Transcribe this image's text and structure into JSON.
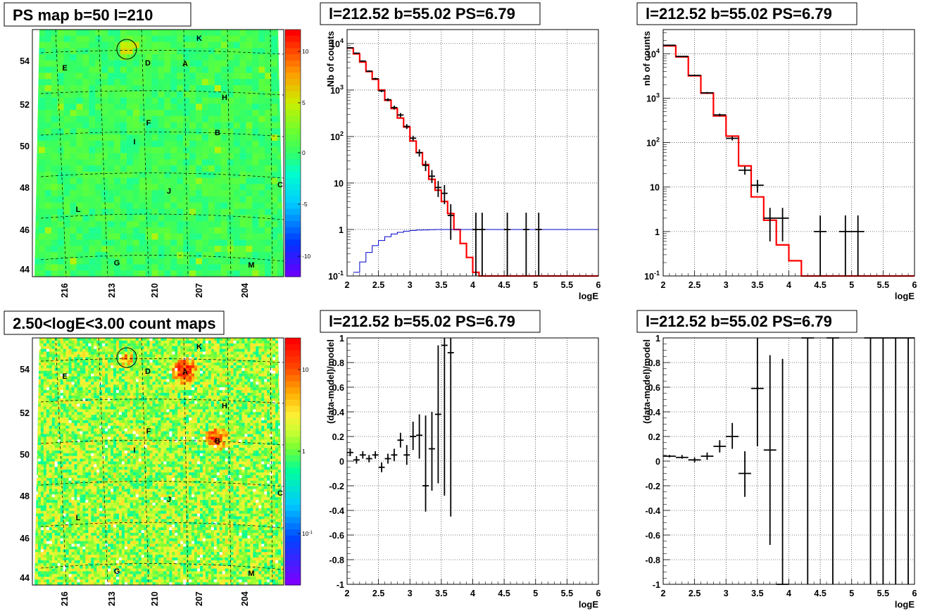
{
  "colors": {
    "model": "#ff0000",
    "exposure": "#0000cc",
    "data": "#000000"
  },
  "sky_maps": {
    "lat_ticks": [
      "54",
      "52",
      "50",
      "48",
      "46",
      "44"
    ],
    "lon_ticks": [
      "216",
      "213",
      "210",
      "207",
      "204"
    ],
    "source_markers": [
      "K",
      "D",
      "A",
      "E",
      "H",
      "F",
      "B",
      "I",
      "C",
      "J",
      "L",
      "G",
      "M"
    ],
    "top": {
      "title": "PS map b=50 l=210",
      "colorbar_ticks": [
        "10",
        "5",
        "0",
        "-5",
        "-10"
      ]
    },
    "bottom": {
      "title": "2.50<logE<3.00 count maps",
      "colorbar_ticks": [
        "10",
        "1",
        "10-1"
      ]
    }
  },
  "chart_data": [
    {
      "type": "line",
      "title": "l=212.52 b=55.02 PS=6.79",
      "xlabel": "logE",
      "ylabel": "Nb of counts",
      "x_ticks": [
        "2",
        "2.5",
        "3",
        "3.5",
        "4",
        "4.5",
        "5",
        "5.5",
        "6"
      ],
      "y_ticks": [
        "10-1",
        "1",
        "10",
        "102",
        "103",
        "104"
      ],
      "xlim": [
        2,
        6
      ],
      "ylim": [
        0.1,
        20000
      ],
      "log_y": true,
      "grid": true,
      "series": [
        {
          "style": "step-model",
          "bin_width": 0.1,
          "x": [
            2.0,
            2.1,
            2.2,
            2.3,
            2.4,
            2.5,
            2.6,
            2.7,
            2.8,
            2.9,
            3.0,
            3.1,
            3.2,
            3.3,
            3.4,
            3.5,
            3.6,
            3.7,
            3.8,
            3.9,
            4.0,
            4.1,
            4.2,
            4.3,
            4.4,
            4.5,
            4.6,
            4.7,
            4.8,
            4.9,
            5.0,
            5.1,
            5.2,
            5.3,
            5.4,
            5.5,
            5.6,
            5.7,
            5.8,
            5.9
          ],
          "y": [
            8000,
            6000,
            4000,
            2500,
            1700,
            1000,
            600,
            400,
            250,
            160,
            80,
            45,
            25,
            12,
            7,
            4,
            2.2,
            1.0,
            0.5,
            0.25,
            0.12,
            0.1,
            0.1,
            0.1,
            0.1,
            0.1,
            0.1,
            0.1,
            0.1,
            0.1,
            0.1,
            0.1,
            0.1,
            0.1,
            0.1,
            0.1,
            0.1,
            0.1,
            0.1,
            0.1
          ]
        },
        {
          "style": "step-exposure",
          "bin_width": 0.1,
          "x": [
            2.1,
            2.2,
            2.3,
            2.4,
            2.5,
            2.6,
            2.7,
            2.8,
            2.9,
            3.0,
            3.1,
            3.2,
            3.3,
            3.4,
            3.5,
            3.6,
            3.7,
            3.8,
            3.9,
            4.0,
            4.1,
            4.2,
            4.3,
            4.4,
            4.5,
            4.6,
            4.7,
            4.8,
            4.9,
            5.0,
            5.1,
            5.2,
            5.3,
            5.4,
            5.5,
            5.6,
            5.7,
            5.8,
            5.9
          ],
          "y": [
            0.12,
            0.2,
            0.32,
            0.45,
            0.58,
            0.7,
            0.8,
            0.87,
            0.92,
            0.95,
            0.97,
            0.98,
            0.99,
            1,
            1,
            1,
            1,
            1,
            1,
            1,
            1,
            1,
            1,
            1,
            1,
            1,
            1,
            1,
            1,
            1,
            1,
            1,
            1,
            1,
            1,
            1,
            1,
            1,
            1
          ]
        },
        {
          "style": "errors-log",
          "dx": 0.05,
          "points": [
            {
              "x": 2.05,
              "y": 8100,
              "lo": 7900,
              "hi": 8300
            },
            {
              "x": 2.15,
              "y": 6200,
              "lo": 6000,
              "hi": 6400
            },
            {
              "x": 2.25,
              "y": 4200,
              "lo": 4050,
              "hi": 4350
            },
            {
              "x": 2.35,
              "y": 2550,
              "lo": 2450,
              "hi": 2650
            },
            {
              "x": 2.45,
              "y": 1750,
              "lo": 1670,
              "hi": 1830
            },
            {
              "x": 2.55,
              "y": 960,
              "lo": 900,
              "hi": 1020
            },
            {
              "x": 2.65,
              "y": 620,
              "lo": 575,
              "hi": 665
            },
            {
              "x": 2.75,
              "y": 420,
              "lo": 380,
              "hi": 460
            },
            {
              "x": 2.85,
              "y": 290,
              "lo": 260,
              "hi": 320
            },
            {
              "x": 2.95,
              "y": 165,
              "lo": 145,
              "hi": 185
            },
            {
              "x": 3.05,
              "y": 92,
              "lo": 80,
              "hi": 104
            },
            {
              "x": 3.15,
              "y": 45,
              "lo": 37,
              "hi": 53
            },
            {
              "x": 3.25,
              "y": 24,
              "lo": 18,
              "hi": 30
            },
            {
              "x": 3.35,
              "y": 14,
              "lo": 10,
              "hi": 19
            },
            {
              "x": 3.45,
              "y": 8,
              "lo": 5,
              "hi": 11
            },
            {
              "x": 3.55,
              "y": 6,
              "lo": 3.5,
              "hi": 9
            },
            {
              "x": 3.65,
              "y": 2,
              "lo": 0.6,
              "hi": 3.5
            },
            {
              "x": 4.05,
              "y": 1,
              "lo": 0.1,
              "hi": 2.3
            },
            {
              "x": 4.15,
              "y": 1,
              "lo": 0.1,
              "hi": 2.3
            },
            {
              "x": 4.55,
              "y": 1,
              "lo": 0.1,
              "hi": 2.3
            },
            {
              "x": 4.85,
              "y": 1,
              "lo": 0.1,
              "hi": 2.3
            },
            {
              "x": 5.05,
              "y": 1,
              "lo": 0.1,
              "hi": 2.3
            }
          ]
        }
      ]
    },
    {
      "type": "line",
      "title": "l=212.52 b=55.02 PS=6.79",
      "xlabel": "logE",
      "ylabel": "nb of counts",
      "x_ticks": [
        "2",
        "2.5",
        "3",
        "3.5",
        "4",
        "4.5",
        "5",
        "5.5",
        "6"
      ],
      "y_ticks": [
        "10-1",
        "1",
        "10",
        "102",
        "103",
        "104"
      ],
      "xlim": [
        2,
        6
      ],
      "ylim": [
        0.1,
        35000
      ],
      "log_y": true,
      "grid": true,
      "series": [
        {
          "style": "step-model",
          "bin_width": 0.2,
          "x": [
            2.0,
            2.2,
            2.4,
            2.6,
            2.8,
            3.0,
            3.2,
            3.4,
            3.6,
            3.8,
            4.0,
            4.2,
            4.4,
            4.6,
            4.8,
            5.0,
            5.2,
            5.4,
            5.6,
            5.8
          ],
          "y": [
            15000,
            8500,
            3200,
            1300,
            400,
            140,
            30,
            6,
            1.8,
            0.5,
            0.22,
            0.1,
            0.1,
            0.1,
            0.1,
            0.1,
            0.1,
            0.1,
            0.1,
            0.1
          ]
        },
        {
          "style": "errors-log",
          "dx": 0.1,
          "points": [
            {
              "x": 2.1,
              "y": 15500,
              "lo": 15200,
              "hi": 15800
            },
            {
              "x": 2.3,
              "y": 8700,
              "lo": 8500,
              "hi": 8900
            },
            {
              "x": 2.5,
              "y": 3250,
              "lo": 3150,
              "hi": 3350
            },
            {
              "x": 2.7,
              "y": 1320,
              "lo": 1260,
              "hi": 1380
            },
            {
              "x": 2.9,
              "y": 420,
              "lo": 390,
              "hi": 450
            },
            {
              "x": 3.1,
              "y": 125,
              "lo": 112,
              "hi": 138
            },
            {
              "x": 3.3,
              "y": 24,
              "lo": 19,
              "hi": 29
            },
            {
              "x": 3.5,
              "y": 11,
              "lo": 7.5,
              "hi": 14.5
            },
            {
              "x": 3.7,
              "y": 2,
              "lo": 0.6,
              "hi": 3.4
            },
            {
              "x": 3.9,
              "y": 2,
              "lo": 0.6,
              "hi": 3.4
            },
            {
              "x": 4.5,
              "y": 1,
              "lo": 0.1,
              "hi": 2.3
            },
            {
              "x": 4.9,
              "y": 1,
              "lo": 0.1,
              "hi": 2.3
            },
            {
              "x": 5.1,
              "y": 1,
              "lo": 0.1,
              "hi": 2.3
            }
          ]
        }
      ]
    },
    {
      "type": "scatter",
      "title": "l=212.52 b=55.02 PS=6.79",
      "xlabel": "logE",
      "ylabel": "(data-model)/model",
      "x_ticks": [
        "2",
        "2.5",
        "3",
        "3.5",
        "4",
        "4.5",
        "5",
        "5.5",
        "6"
      ],
      "y_ticks": [
        "1",
        "0.8",
        "0.6",
        "0.4",
        "0.2",
        "0",
        "-0.2",
        "-0.4",
        "-0.6",
        "-0.8",
        "-1"
      ],
      "xlim": [
        2,
        6
      ],
      "ylim": [
        -1,
        1
      ],
      "grid": true,
      "series": [
        {
          "style": "errors-lin",
          "dx": 0.05,
          "points": [
            {
              "x": 2.05,
              "y": 0.07,
              "lo": 0.04,
              "hi": 0.1
            },
            {
              "x": 2.15,
              "y": 0.01,
              "lo": -0.02,
              "hi": 0.04
            },
            {
              "x": 2.25,
              "y": 0.05,
              "lo": 0.02,
              "hi": 0.08
            },
            {
              "x": 2.35,
              "y": 0.02,
              "lo": -0.01,
              "hi": 0.05
            },
            {
              "x": 2.45,
              "y": 0.05,
              "lo": 0.02,
              "hi": 0.08
            },
            {
              "x": 2.55,
              "y": -0.05,
              "lo": -0.09,
              "hi": -0.01
            },
            {
              "x": 2.65,
              "y": 0.02,
              "lo": -0.02,
              "hi": 0.06
            },
            {
              "x": 2.75,
              "y": 0.05,
              "lo": 0.0,
              "hi": 0.1
            },
            {
              "x": 2.85,
              "y": 0.17,
              "lo": 0.11,
              "hi": 0.23
            },
            {
              "x": 2.95,
              "y": 0.05,
              "lo": -0.03,
              "hi": 0.13
            },
            {
              "x": 3.05,
              "y": 0.2,
              "lo": 0.09,
              "hi": 0.32
            },
            {
              "x": 3.15,
              "y": 0.21,
              "lo": 0.02,
              "hi": 0.38
            },
            {
              "x": 3.25,
              "y": -0.2,
              "lo": -0.41,
              "hi": 0.37
            },
            {
              "x": 3.35,
              "y": 0.1,
              "lo": -0.24,
              "hi": 0.4
            },
            {
              "x": 3.45,
              "y": 0.38,
              "lo": -0.18,
              "hi": 0.94
            },
            {
              "x": 3.55,
              "y": 0.94,
              "lo": -0.28,
              "hi": 1.0
            },
            {
              "x": 3.65,
              "y": 0.88,
              "lo": -0.45,
              "hi": 1.0
            }
          ]
        }
      ]
    },
    {
      "type": "scatter",
      "title": "l=212.52 b=55.02 PS=6.79",
      "xlabel": "logE",
      "ylabel": "(data-model)/model",
      "x_ticks": [
        "2",
        "2.5",
        "3",
        "3.5",
        "4",
        "4.5",
        "5",
        "5.5",
        "6"
      ],
      "y_ticks": [
        "1",
        "0.8",
        "0.6",
        "0.4",
        "0.2",
        "0",
        "-0.2",
        "-0.4",
        "-0.6",
        "-0.8",
        "-1"
      ],
      "xlim": [
        2,
        6
      ],
      "ylim": [
        -1,
        1
      ],
      "grid": true,
      "series": [
        {
          "style": "errors-lin",
          "dx": 0.1,
          "points": [
            {
              "x": 2.1,
              "y": 0.04,
              "lo": 0.03,
              "hi": 0.05
            },
            {
              "x": 2.3,
              "y": 0.03,
              "lo": 0.02,
              "hi": 0.05
            },
            {
              "x": 2.5,
              "y": 0.01,
              "lo": -0.01,
              "hi": 0.03
            },
            {
              "x": 2.7,
              "y": 0.04,
              "lo": 0.01,
              "hi": 0.07
            },
            {
              "x": 2.9,
              "y": 0.12,
              "lo": 0.07,
              "hi": 0.17
            },
            {
              "x": 3.1,
              "y": 0.2,
              "lo": 0.1,
              "hi": 0.31
            },
            {
              "x": 3.3,
              "y": -0.1,
              "lo": -0.29,
              "hi": 0.08
            },
            {
              "x": 3.5,
              "y": 0.59,
              "lo": 0.12,
              "hi": 1.0
            },
            {
              "x": 3.7,
              "y": 0.09,
              "lo": -0.68,
              "hi": 0.86
            },
            {
              "x": 3.9,
              "y": -1.0,
              "lo": -1.0,
              "hi": 0.83
            },
            {
              "x": 4.3,
              "y": 1.0,
              "lo": -1.0,
              "hi": 1.0
            },
            {
              "x": 4.7,
              "y": 1.0,
              "lo": -1.0,
              "hi": 1.0
            },
            {
              "x": 5.3,
              "y": 1.0,
              "lo": -1.0,
              "hi": 1.0
            },
            {
              "x": 5.5,
              "y": 1.0,
              "lo": -1.0,
              "hi": 1.0
            },
            {
              "x": 5.7,
              "y": 1.0,
              "lo": -1.0,
              "hi": 1.0
            },
            {
              "x": 5.9,
              "y": 1.0,
              "lo": -1.0,
              "hi": 1.0
            }
          ]
        }
      ]
    }
  ]
}
